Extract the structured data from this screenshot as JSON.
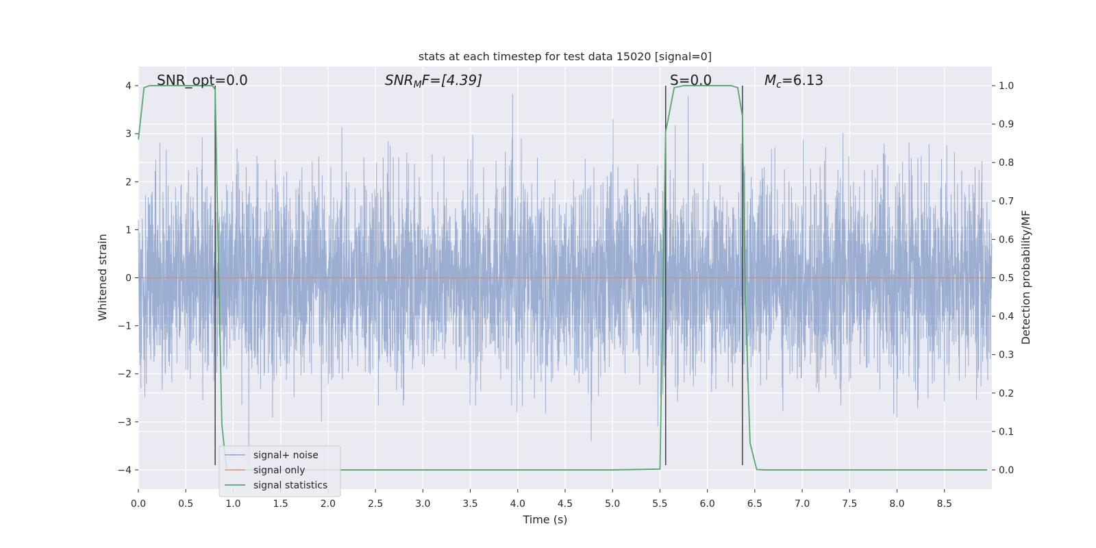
{
  "chart_data": {
    "type": "line",
    "title": "stats at each timestep for test data 15020 [signal=0]",
    "xlabel": "Time (s)",
    "ylabel": "Whitened strain",
    "ylabel_right": "Detection probability/MF",
    "xlim": [
      0,
      9
    ],
    "ylim": [
      -4.4,
      4.4
    ],
    "ylim_right": [
      -0.05,
      1.05
    ],
    "x_ticks": [
      0.0,
      0.5,
      1.0,
      1.5,
      2.0,
      2.5,
      3.0,
      3.5,
      4.0,
      4.5,
      5.0,
      5.5,
      6.0,
      6.5,
      7.0,
      7.5,
      8.0,
      8.5
    ],
    "y_ticks": [
      4,
      3,
      2,
      1,
      0,
      -1,
      -2,
      -3,
      -4
    ],
    "y_ticks_right": [
      1.0,
      0.9,
      0.8,
      0.7,
      0.6,
      0.5,
      0.4,
      0.3,
      0.2,
      0.1,
      0.0
    ],
    "x_tick_labels": [
      "0.0",
      "0.5",
      "1.0",
      "1.5",
      "2.0",
      "2.5",
      "3.0",
      "3.5",
      "4.0",
      "4.5",
      "5.0",
      "5.5",
      "6.0",
      "6.5",
      "7.0",
      "7.5",
      "8.0",
      "8.5"
    ],
    "y_tick_labels": [
      "4",
      "3",
      "2",
      "1",
      "0",
      "−1",
      "−2",
      "−3",
      "−4"
    ],
    "y_tick_labels_right": [
      "1.0",
      "0.9",
      "0.8",
      "0.7",
      "0.6",
      "0.5",
      "0.4",
      "0.3",
      "0.2",
      "0.1",
      "0.0"
    ],
    "grid": true,
    "legend_position": "lower-left",
    "legend": [
      "signal+ noise",
      "signal only",
      "signal statistics"
    ],
    "colors": {
      "noise": "#4c72b0",
      "signal": "#dd8452",
      "stats": "#55a868",
      "vline": "#404040",
      "background": "#eaeaf2"
    },
    "annotations": {
      "snr_opt": "SNR_opt=0.0",
      "snr_mf_main": "SNR",
      "snr_mf_sub": "M",
      "snr_mf_rest": "F=[4.39]",
      "s_value": "S=0.0",
      "mc_main": "M",
      "mc_sub": "c",
      "mc_rest": "=6.13"
    },
    "vlines_x": [
      0.81,
      5.56,
      6.37
    ],
    "series": [
      {
        "name": "signal+ noise",
        "axis": "left",
        "description_type": "noise",
        "x_range": [
          0,
          9
        ],
        "approx_std": 1.0,
        "approx_min": -3.9,
        "approx_max": 4.0
      },
      {
        "name": "signal only",
        "axis": "left",
        "x": [
          0,
          9
        ],
        "y": [
          0,
          0
        ]
      },
      {
        "name": "signal statistics",
        "axis": "right",
        "x": [
          0.0,
          0.06,
          0.12,
          0.25,
          0.5,
          0.78,
          0.81,
          0.84,
          0.88,
          0.93,
          1.0,
          2.0,
          3.0,
          4.0,
          5.0,
          5.5,
          5.56,
          5.6,
          5.65,
          5.75,
          6.0,
          6.25,
          6.32,
          6.37,
          6.4,
          6.45,
          6.52,
          6.6,
          7.0,
          8.0,
          8.95
        ],
        "y": [
          0.86,
          0.995,
          1.0,
          1.0,
          1.0,
          1.0,
          0.99,
          0.6,
          0.12,
          0.0,
          0.0,
          0.0,
          0.0,
          0.0,
          0.0,
          0.002,
          0.88,
          0.93,
          0.995,
          1.0,
          1.0,
          1.0,
          0.995,
          0.92,
          0.45,
          0.07,
          0.001,
          0.0,
          0.0,
          0.0,
          0.0
        ]
      }
    ]
  }
}
